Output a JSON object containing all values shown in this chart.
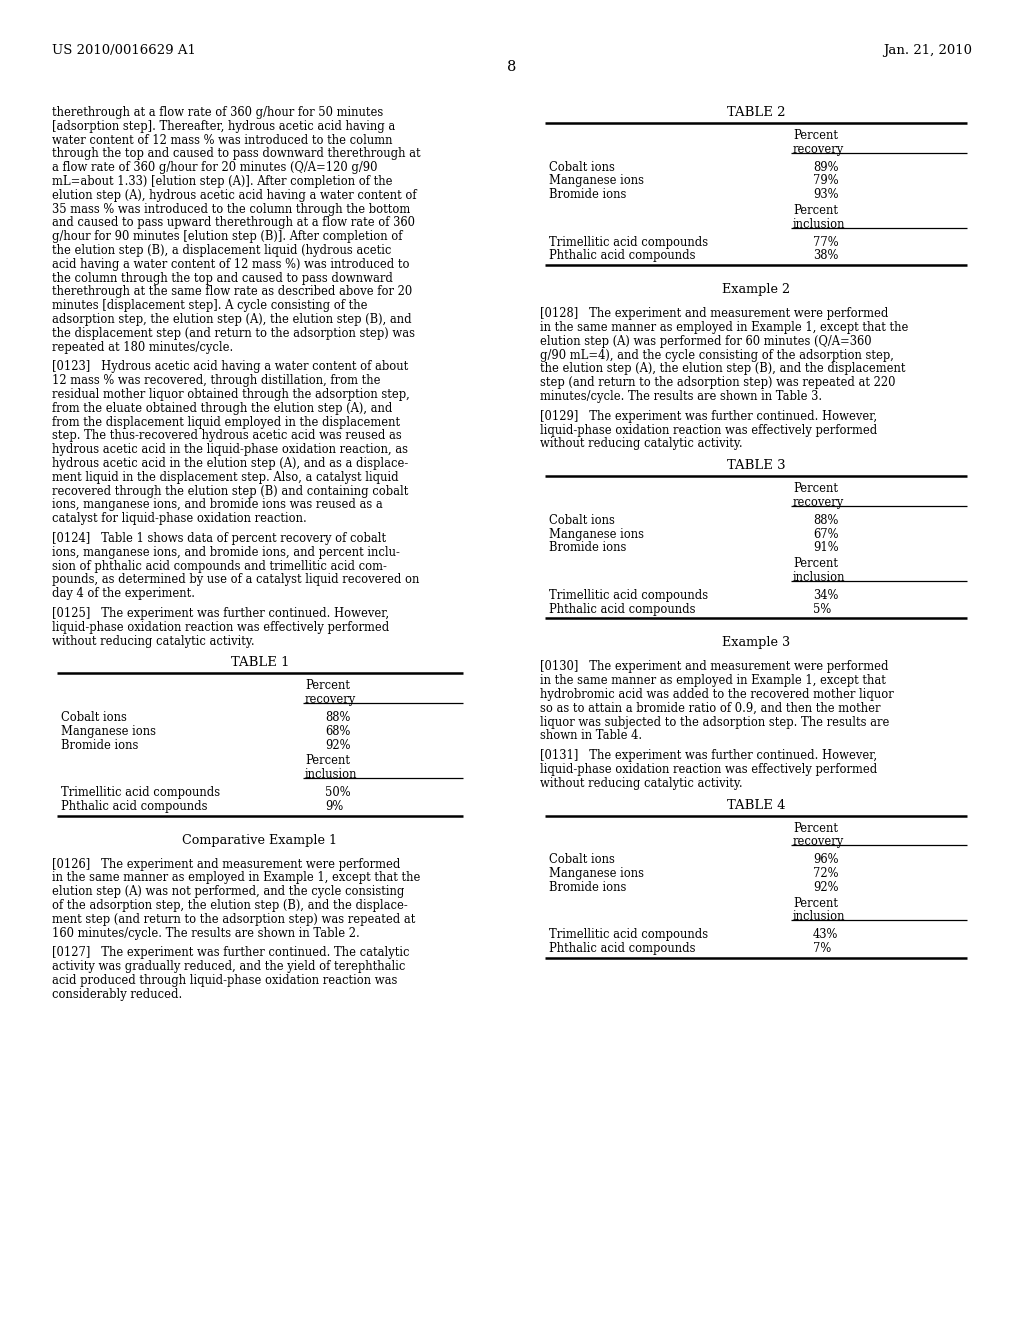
{
  "bg_color": "#ffffff",
  "header_left": "US 2010/0016629 A1",
  "header_right": "Jan. 21, 2010",
  "page_number": "8",
  "left_col_lines": [
    "therethrough at a flow rate of 360 g/hour for 50 minutes",
    "[adsorption step]. Thereafter, hydrous acetic acid having a",
    "water content of 12 mass % was introduced to the column",
    "through the top and caused to pass downward therethrough at",
    "a flow rate of 360 g/hour for 20 minutes (Q/A=120 g/90",
    "mL=about 1.33) [elution step (A)]. After completion of the",
    "elution step (A), hydrous acetic acid having a water content of",
    "35 mass % was introduced to the column through the bottom",
    "and caused to pass upward therethrough at a flow rate of 360",
    "g/hour for 90 minutes [elution step (B)]. After completion of",
    "the elution step (B), a displacement liquid (hydrous acetic",
    "acid having a water content of 12 mass %) was introduced to",
    "the column through the top and caused to pass downward",
    "therethrough at the same flow rate as described above for 20",
    "minutes [displacement step]. A cycle consisting of the",
    "adsorption step, the elution step (A), the elution step (B), and",
    "the displacement step (and return to the adsorption step) was",
    "repeated at 180 minutes/cycle.",
    "PARA",
    "[0123]   Hydrous acetic acid having a water content of about",
    "12 mass % was recovered, through distillation, from the",
    "residual mother liquor obtained through the adsorption step,",
    "from the eluate obtained through the elution step (A), and",
    "from the displacement liquid employed in the displacement",
    "step. The thus-recovered hydrous acetic acid was reused as",
    "hydrous acetic acid in the liquid-phase oxidation reaction, as",
    "hydrous acetic acid in the elution step (A), and as a displace-",
    "ment liquid in the displacement step. Also, a catalyst liquid",
    "recovered through the elution step (B) and containing cobalt",
    "ions, manganese ions, and bromide ions was reused as a",
    "catalyst for liquid-phase oxidation reaction.",
    "PARA",
    "[0124]   Table 1 shows data of percent recovery of cobalt",
    "ions, manganese ions, and bromide ions, and percent inclu-",
    "sion of phthalic acid compounds and trimellitic acid com-",
    "pounds, as determined by use of a catalyst liquid recovered on",
    "day 4 of the experiment.",
    "PARA",
    "[0125]   The experiment was further continued. However,",
    "liquid-phase oxidation reaction was effectively performed",
    "without reducing catalytic activity."
  ],
  "comp_example1_lines": [
    "PARA",
    "[0126]   The experiment and measurement were performed",
    "in the same manner as employed in Example 1, except that the",
    "elution step (A) was not performed, and the cycle consisting",
    "of the adsorption step, the elution step (B), and the displace-",
    "ment step (and return to the adsorption step) was repeated at",
    "160 minutes/cycle. The results are shown in Table 2.",
    "PARA",
    "[0127]   The experiment was further continued. The catalytic",
    "activity was gradually reduced, and the yield of terephthalic",
    "acid produced through liquid-phase oxidation reaction was",
    "considerably reduced."
  ],
  "example2_lines": [
    "PARA",
    "[0128]   The experiment and measurement were performed",
    "in the same manner as employed in Example 1, except that the",
    "elution step (A) was performed for 60 minutes (Q/A=360",
    "g/90 mL=4), and the cycle consisting of the adsorption step,",
    "the elution step (A), the elution step (B), and the displacement",
    "step (and return to the adsorption step) was repeated at 220",
    "minutes/cycle. The results are shown in Table 3.",
    "PARA",
    "[0129]   The experiment was further continued. However,",
    "liquid-phase oxidation reaction was effectively performed",
    "without reducing catalytic activity."
  ],
  "example3_lines": [
    "PARA",
    "[0130]   The experiment and measurement were performed",
    "in the same manner as employed in Example 1, except that",
    "hydrobromic acid was added to the recovered mother liquor",
    "so as to attain a bromide ratio of 0.9, and then the mother",
    "liquor was subjected to the adsorption step. The results are",
    "shown in Table 4.",
    "PARA",
    "[0131]   The experiment was further continued. However,",
    "liquid-phase oxidation reaction was effectively performed",
    "without reducing catalytic activity."
  ],
  "table1": {
    "title": "TABLE 1",
    "rows_recovery": [
      [
        "Cobalt ions",
        "88%"
      ],
      [
        "Manganese ions",
        "68%"
      ],
      [
        "Bromide ions",
        "92%"
      ]
    ],
    "rows_inclusion": [
      [
        "Trimellitic acid compounds",
        "50%"
      ],
      [
        "Phthalic acid compounds",
        "9%"
      ]
    ]
  },
  "table2": {
    "title": "TABLE 2",
    "rows_recovery": [
      [
        "Cobalt ions",
        "89%"
      ],
      [
        "Manganese ions",
        "79%"
      ],
      [
        "Bromide ions",
        "93%"
      ]
    ],
    "rows_inclusion": [
      [
        "Trimellitic acid compounds",
        "77%"
      ],
      [
        "Phthalic acid compounds",
        "38%"
      ]
    ]
  },
  "table3": {
    "title": "TABLE 3",
    "rows_recovery": [
      [
        "Cobalt ions",
        "88%"
      ],
      [
        "Manganese ions",
        "67%"
      ],
      [
        "Bromide ions",
        "91%"
      ]
    ],
    "rows_inclusion": [
      [
        "Trimellitic acid compounds",
        "34%"
      ],
      [
        "Phthalic acid compounds",
        "5%"
      ]
    ]
  },
  "table4": {
    "title": "TABLE 4",
    "rows_recovery": [
      [
        "Cobalt ions",
        "96%"
      ],
      [
        "Manganese ions",
        "72%"
      ],
      [
        "Bromide ions",
        "92%"
      ]
    ],
    "rows_inclusion": [
      [
        "Trimellitic acid compounds",
        "43%"
      ],
      [
        "Phthalic acid compounds",
        "7%"
      ]
    ]
  }
}
